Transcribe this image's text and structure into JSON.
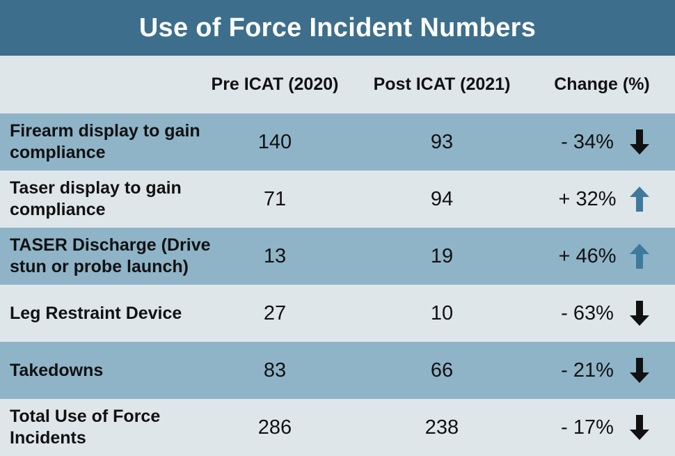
{
  "chart_data": {
    "type": "table",
    "title": "Use of Force Incident Numbers",
    "columns": [
      "",
      "Pre ICAT (2020)",
      "Post ICAT (2021)",
      "Change (%)"
    ],
    "rows": [
      {
        "label": "Firearm display to gain compliance",
        "pre": 140,
        "post": 93,
        "change_text": "- 34%",
        "direction": "down"
      },
      {
        "label": "Taser display to gain compliance",
        "pre": 71,
        "post": 94,
        "change_text": "+ 32%",
        "direction": "up"
      },
      {
        "label": "TASER Discharge (Drive stun or probe launch)",
        "pre": 13,
        "post": 19,
        "change_text": "+ 46%",
        "direction": "up"
      },
      {
        "label": "Leg Restraint Device",
        "pre": 27,
        "post": 10,
        "change_text": "- 63%",
        "direction": "down"
      },
      {
        "label": "Takedowns",
        "pre": 83,
        "post": 66,
        "change_text": "- 21%",
        "direction": "down"
      },
      {
        "label": "Total Use of Force Incidents",
        "pre": 286,
        "post": 238,
        "change_text": "- 17%",
        "direction": "down"
      }
    ],
    "colors": {
      "title_bg": "#3d6e8c",
      "row_dark": "#8fb4c8",
      "row_light": "#dfe6ea",
      "arrow_down": "#111111",
      "arrow_up": "#3d7a9c"
    }
  }
}
